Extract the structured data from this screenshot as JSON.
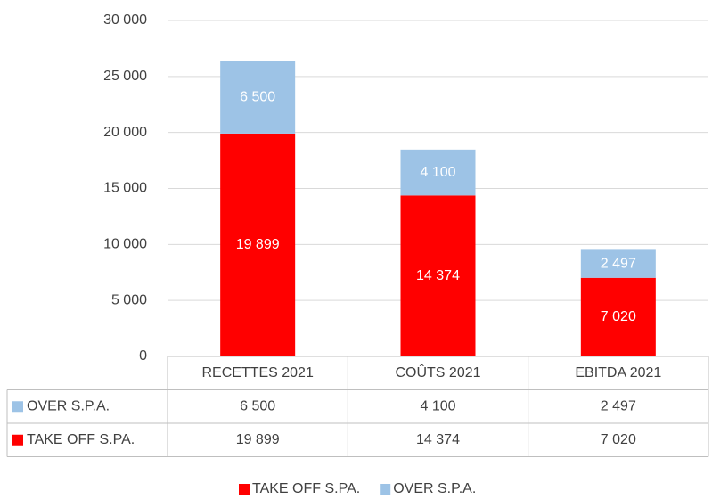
{
  "chart_data": {
    "type": "bar",
    "stacked": true,
    "categories": [
      "RECETTES 2021",
      "COÛTS 2021",
      "EBITDA 2021"
    ],
    "series": [
      {
        "name": "TAKE OFF S.PA.",
        "color": "#ff0000",
        "values": [
          19899,
          14374,
          7020
        ],
        "value_labels": [
          "19 899",
          "14 374",
          "7 020"
        ]
      },
      {
        "name": "OVER S.P.A.",
        "color": "#9dc3e6",
        "values": [
          6500,
          4100,
          2497
        ],
        "value_labels": [
          "6 500",
          "4 100",
          "2 497"
        ]
      }
    ],
    "ylim": [
      0,
      30000
    ],
    "yticks": [
      {
        "value": 0,
        "label": "0"
      },
      {
        "value": 5000,
        "label": "5 000"
      },
      {
        "value": 10000,
        "label": "10 000"
      },
      {
        "value": 15000,
        "label": "15 000"
      },
      {
        "value": 20000,
        "label": "20 000"
      },
      {
        "value": 25000,
        "label": "25 000"
      },
      {
        "value": 30000,
        "label": "30 000"
      }
    ],
    "grid": true,
    "legend": "bottom"
  }
}
